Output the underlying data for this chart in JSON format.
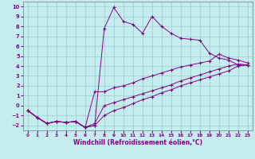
{
  "title": "",
  "xlabel": "Windchill (Refroidissement éolien,°C)",
  "ylabel": "",
  "xlim": [
    -0.5,
    23.5
  ],
  "ylim": [
    -2.5,
    10.5
  ],
  "yticks": [
    -2,
    -1,
    0,
    1,
    2,
    3,
    4,
    5,
    6,
    7,
    8,
    9,
    10
  ],
  "xticks": [
    0,
    1,
    2,
    3,
    4,
    5,
    6,
    7,
    8,
    9,
    10,
    11,
    12,
    13,
    14,
    15,
    16,
    17,
    18,
    19,
    20,
    21,
    22,
    23
  ],
  "bg_color": "#c5edf0",
  "line_color": "#880088",
  "grid_color": "#99cccc",
  "lines": [
    {
      "x": [
        0,
        1,
        2,
        3,
        4,
        5,
        6,
        7,
        8,
        9,
        10,
        11,
        12,
        13,
        14,
        15,
        16,
        17,
        18,
        19,
        20,
        21,
        22,
        23
      ],
      "y": [
        -0.5,
        -1.2,
        -1.8,
        -1.6,
        -1.7,
        -1.6,
        -2.2,
        -2.0,
        7.8,
        9.9,
        8.5,
        8.2,
        7.3,
        9.0,
        8.0,
        7.3,
        6.8,
        6.7,
        6.6,
        5.3,
        4.8,
        4.6,
        4.1,
        4.1
      ]
    },
    {
      "x": [
        0,
        1,
        2,
        3,
        4,
        5,
        6,
        7,
        8,
        9,
        10,
        11,
        12,
        13,
        14,
        15,
        16,
        17,
        18,
        19,
        20,
        21,
        22,
        23
      ],
      "y": [
        -0.5,
        -1.2,
        -1.8,
        -1.6,
        -1.7,
        -1.6,
        -2.2,
        1.4,
        1.4,
        1.8,
        2.0,
        2.3,
        2.7,
        3.0,
        3.3,
        3.6,
        3.9,
        4.1,
        4.3,
        4.5,
        5.2,
        4.8,
        4.6,
        4.3
      ]
    },
    {
      "x": [
        0,
        1,
        2,
        3,
        4,
        5,
        6,
        7,
        8,
        9,
        10,
        11,
        12,
        13,
        14,
        15,
        16,
        17,
        18,
        19,
        20,
        21,
        22,
        23
      ],
      "y": [
        -0.5,
        -1.2,
        -1.8,
        -1.6,
        -1.7,
        -1.6,
        -2.2,
        -1.8,
        0.0,
        0.3,
        0.6,
        0.9,
        1.2,
        1.5,
        1.8,
        2.1,
        2.5,
        2.8,
        3.1,
        3.4,
        3.7,
        4.0,
        4.2,
        4.1
      ]
    },
    {
      "x": [
        0,
        1,
        2,
        3,
        4,
        5,
        6,
        7,
        8,
        9,
        10,
        11,
        12,
        13,
        14,
        15,
        16,
        17,
        18,
        19,
        20,
        21,
        22,
        23
      ],
      "y": [
        -0.5,
        -1.2,
        -1.8,
        -1.6,
        -1.7,
        -1.6,
        -2.2,
        -2.0,
        -1.0,
        -0.5,
        -0.2,
        0.2,
        0.6,
        0.9,
        1.3,
        1.6,
        2.0,
        2.3,
        2.6,
        2.9,
        3.2,
        3.5,
        4.0,
        4.1
      ]
    }
  ]
}
